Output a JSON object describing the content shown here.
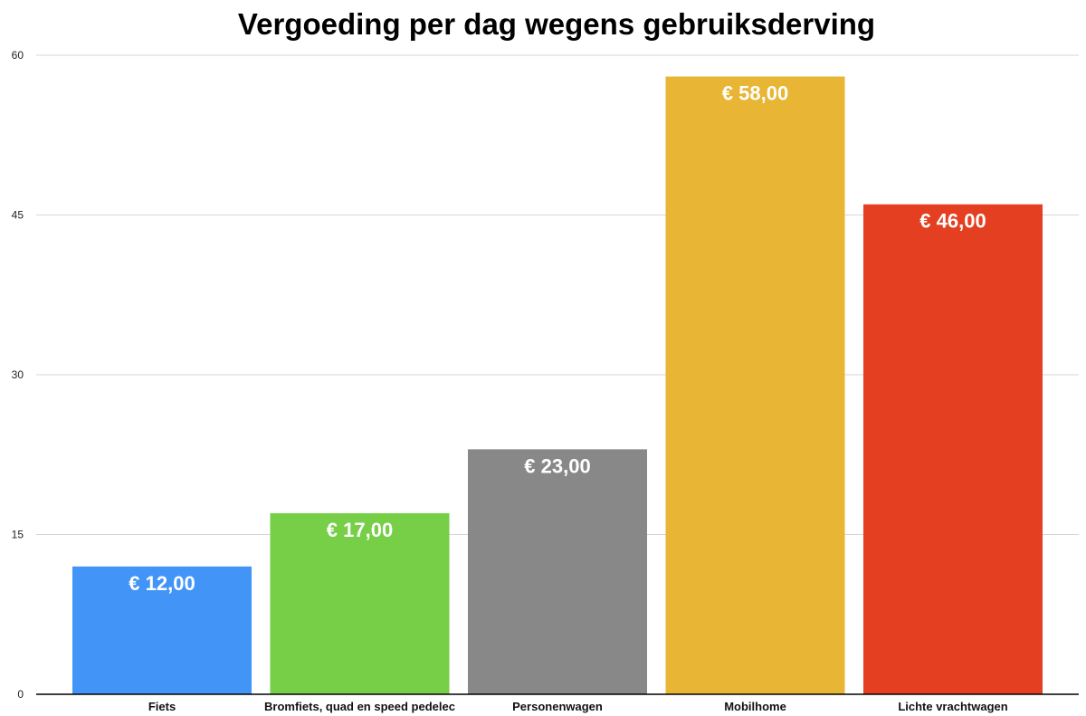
{
  "chart_data": {
    "type": "bar",
    "title": "Vergoeding per dag wegens gebruiksderving",
    "xlabel": "",
    "ylabel": "",
    "categories": [
      "Fiets",
      "Bromfiets, quad en speed pedelec",
      "Personenwagen",
      "Mobilhome",
      "Lichte vrachtwagen"
    ],
    "values": [
      12,
      17,
      23,
      58,
      46
    ],
    "data_labels": [
      "€ 12,00",
      "€ 17,00",
      "€ 23,00",
      "€ 58,00",
      "€ 46,00"
    ],
    "colors": [
      "#4394f7",
      "#77ce47",
      "#888888",
      "#e8b535",
      "#e33f20"
    ],
    "ylim": [
      0,
      60
    ],
    "yticks": [
      0,
      15,
      30,
      45,
      60
    ],
    "grid": true,
    "legend": "none"
  }
}
